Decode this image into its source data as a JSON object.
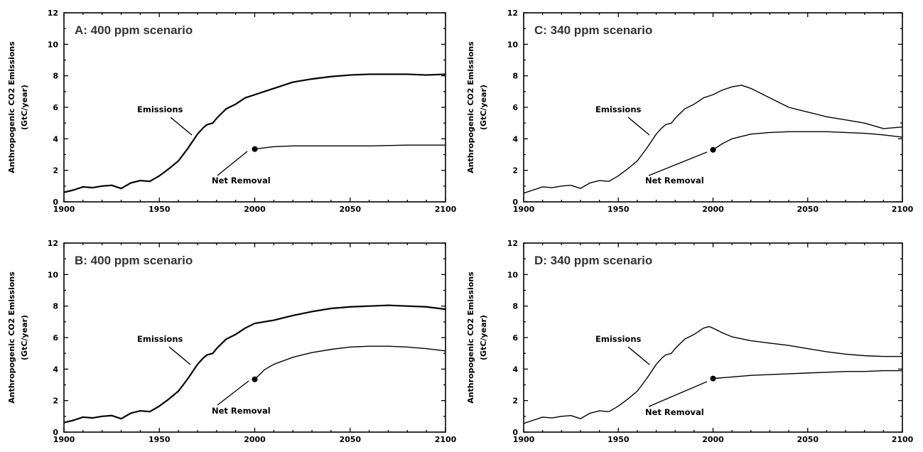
{
  "chart_data": [
    {
      "type": "line",
      "title": "A:  400 ppm scenario",
      "ylabel": "Anthropogenic CO2 Emissions (GtC/year)",
      "xlim": [
        1900,
        2100
      ],
      "ylim": [
        0,
        12
      ],
      "x_ticks": [
        "1900",
        "1950",
        "2000",
        "2050",
        "2100"
      ],
      "y_ticks": [
        "0",
        "2",
        "4",
        "6",
        "8",
        "10",
        "12"
      ],
      "annotations": [
        "Emissions",
        "Net Removal"
      ],
      "series": [
        {
          "name": "Emissions",
          "x": [
            1900,
            1905,
            1910,
            1915,
            1920,
            1925,
            1930,
            1935,
            1940,
            1945,
            1950,
            1955,
            1960,
            1965,
            1970,
            1973,
            1975,
            1978,
            1980,
            1985,
            1990,
            1995,
            2000,
            2005,
            2010,
            2020,
            2030,
            2040,
            2050,
            2060,
            2070,
            2080,
            2090,
            2100
          ],
          "y": [
            0.6,
            0.75,
            0.95,
            0.9,
            1.0,
            1.05,
            0.85,
            1.2,
            1.35,
            1.3,
            1.65,
            2.1,
            2.6,
            3.4,
            4.3,
            4.7,
            4.9,
            5.0,
            5.3,
            5.9,
            6.2,
            6.6,
            6.8,
            7.0,
            7.2,
            7.6,
            7.8,
            7.95,
            8.05,
            8.1,
            8.1,
            8.1,
            8.05,
            8.1
          ]
        },
        {
          "name": "Net Removal",
          "x": [
            2000,
            2010,
            2020,
            2040,
            2060,
            2080,
            2100
          ],
          "y": [
            3.35,
            3.5,
            3.55,
            3.55,
            3.55,
            3.6,
            3.6
          ]
        }
      ]
    },
    {
      "type": "line",
      "title": "C:  340 ppm scenario",
      "ylabel": "Anthropogenic CO2 Emissions (GtC/year)",
      "xlim": [
        1900,
        2100
      ],
      "ylim": [
        0,
        12
      ],
      "x_ticks": [
        "1900",
        "1950",
        "2000",
        "2050",
        "2100"
      ],
      "y_ticks": [
        "0",
        "2",
        "4",
        "6",
        "8",
        "10",
        "12"
      ],
      "annotations": [
        "Emissions",
        "Net Removal"
      ],
      "series": [
        {
          "name": "Emissions",
          "x": [
            1900,
            1905,
            1910,
            1915,
            1920,
            1925,
            1930,
            1935,
            1940,
            1945,
            1950,
            1955,
            1960,
            1965,
            1970,
            1973,
            1975,
            1978,
            1980,
            1985,
            1990,
            1995,
            2000,
            2005,
            2010,
            2015,
            2020,
            2030,
            2040,
            2050,
            2060,
            2070,
            2080,
            2090,
            2100
          ],
          "y": [
            0.55,
            0.75,
            0.95,
            0.9,
            1.0,
            1.05,
            0.85,
            1.2,
            1.35,
            1.3,
            1.65,
            2.1,
            2.6,
            3.4,
            4.3,
            4.7,
            4.9,
            5.0,
            5.3,
            5.9,
            6.2,
            6.6,
            6.8,
            7.1,
            7.3,
            7.4,
            7.2,
            6.6,
            6.0,
            5.7,
            5.4,
            5.2,
            5.0,
            4.65,
            4.75
          ]
        },
        {
          "name": "Net Removal",
          "x": [
            2000,
            2005,
            2010,
            2020,
            2030,
            2040,
            2050,
            2060,
            2070,
            2080,
            2090,
            2100
          ],
          "y": [
            3.3,
            3.7,
            4.0,
            4.3,
            4.4,
            4.45,
            4.45,
            4.45,
            4.4,
            4.35,
            4.25,
            4.1
          ]
        }
      ]
    },
    {
      "type": "line",
      "title": "B:  400 ppm scenario",
      "ylabel": "Anthropogenic CO2 Emissions (GtC/year)",
      "xlim": [
        1900,
        2100
      ],
      "ylim": [
        0,
        12
      ],
      "x_ticks": [
        "1900",
        "1950",
        "2000",
        "2050",
        "2100"
      ],
      "y_ticks": [
        "0",
        "2",
        "4",
        "6",
        "8",
        "10",
        "12"
      ],
      "annotations": [
        "Emissions",
        "Net Removal"
      ],
      "series": [
        {
          "name": "Emissions",
          "x": [
            1900,
            1905,
            1910,
            1915,
            1920,
            1925,
            1930,
            1935,
            1940,
            1945,
            1950,
            1955,
            1960,
            1965,
            1970,
            1973,
            1975,
            1978,
            1980,
            1985,
            1990,
            1995,
            2000,
            2005,
            2010,
            2020,
            2030,
            2040,
            2050,
            2060,
            2070,
            2080,
            2090,
            2100
          ],
          "y": [
            0.6,
            0.75,
            0.95,
            0.9,
            1.0,
            1.05,
            0.85,
            1.2,
            1.35,
            1.3,
            1.65,
            2.1,
            2.6,
            3.4,
            4.3,
            4.7,
            4.9,
            5.0,
            5.3,
            5.9,
            6.2,
            6.6,
            6.9,
            7.0,
            7.1,
            7.4,
            7.65,
            7.85,
            7.95,
            8.0,
            8.05,
            8.0,
            7.95,
            7.8
          ]
        },
        {
          "name": "Net Removal",
          "x": [
            2000,
            2005,
            2010,
            2020,
            2030,
            2040,
            2050,
            2060,
            2070,
            2080,
            2090,
            2100
          ],
          "y": [
            3.35,
            3.95,
            4.3,
            4.75,
            5.05,
            5.25,
            5.4,
            5.45,
            5.45,
            5.4,
            5.3,
            5.15
          ]
        }
      ]
    },
    {
      "type": "line",
      "title": "D:  340 ppm scenario",
      "ylabel": "Anthropogenic CO2 Emissions (GtC/year)",
      "xlim": [
        1900,
        2100
      ],
      "ylim": [
        0,
        12
      ],
      "x_ticks": [
        "1900",
        "1950",
        "2000",
        "2050",
        "2100"
      ],
      "y_ticks": [
        "0",
        "2",
        "4",
        "6",
        "8",
        "10",
        "12"
      ],
      "annotations": [
        "Emissions",
        "Net Removal"
      ],
      "series": [
        {
          "name": "Emissions",
          "x": [
            1900,
            1905,
            1910,
            1915,
            1920,
            1925,
            1930,
            1935,
            1940,
            1945,
            1950,
            1955,
            1960,
            1965,
            1970,
            1973,
            1975,
            1978,
            1980,
            1985,
            1990,
            1995,
            1998,
            2000,
            2005,
            2010,
            2020,
            2030,
            2040,
            2050,
            2060,
            2070,
            2080,
            2090,
            2100
          ],
          "y": [
            0.55,
            0.75,
            0.95,
            0.9,
            1.0,
            1.05,
            0.85,
            1.2,
            1.35,
            1.3,
            1.65,
            2.1,
            2.6,
            3.4,
            4.3,
            4.7,
            4.9,
            5.0,
            5.3,
            5.9,
            6.2,
            6.6,
            6.7,
            6.6,
            6.3,
            6.05,
            5.8,
            5.65,
            5.5,
            5.3,
            5.1,
            4.95,
            4.85,
            4.8,
            4.8
          ]
        },
        {
          "name": "Net Removal",
          "x": [
            2000,
            2010,
            2020,
            2030,
            2040,
            2050,
            2060,
            2070,
            2080,
            2090,
            2100
          ],
          "y": [
            3.4,
            3.5,
            3.6,
            3.65,
            3.7,
            3.75,
            3.8,
            3.85,
            3.85,
            3.9,
            3.9
          ]
        }
      ]
    }
  ]
}
